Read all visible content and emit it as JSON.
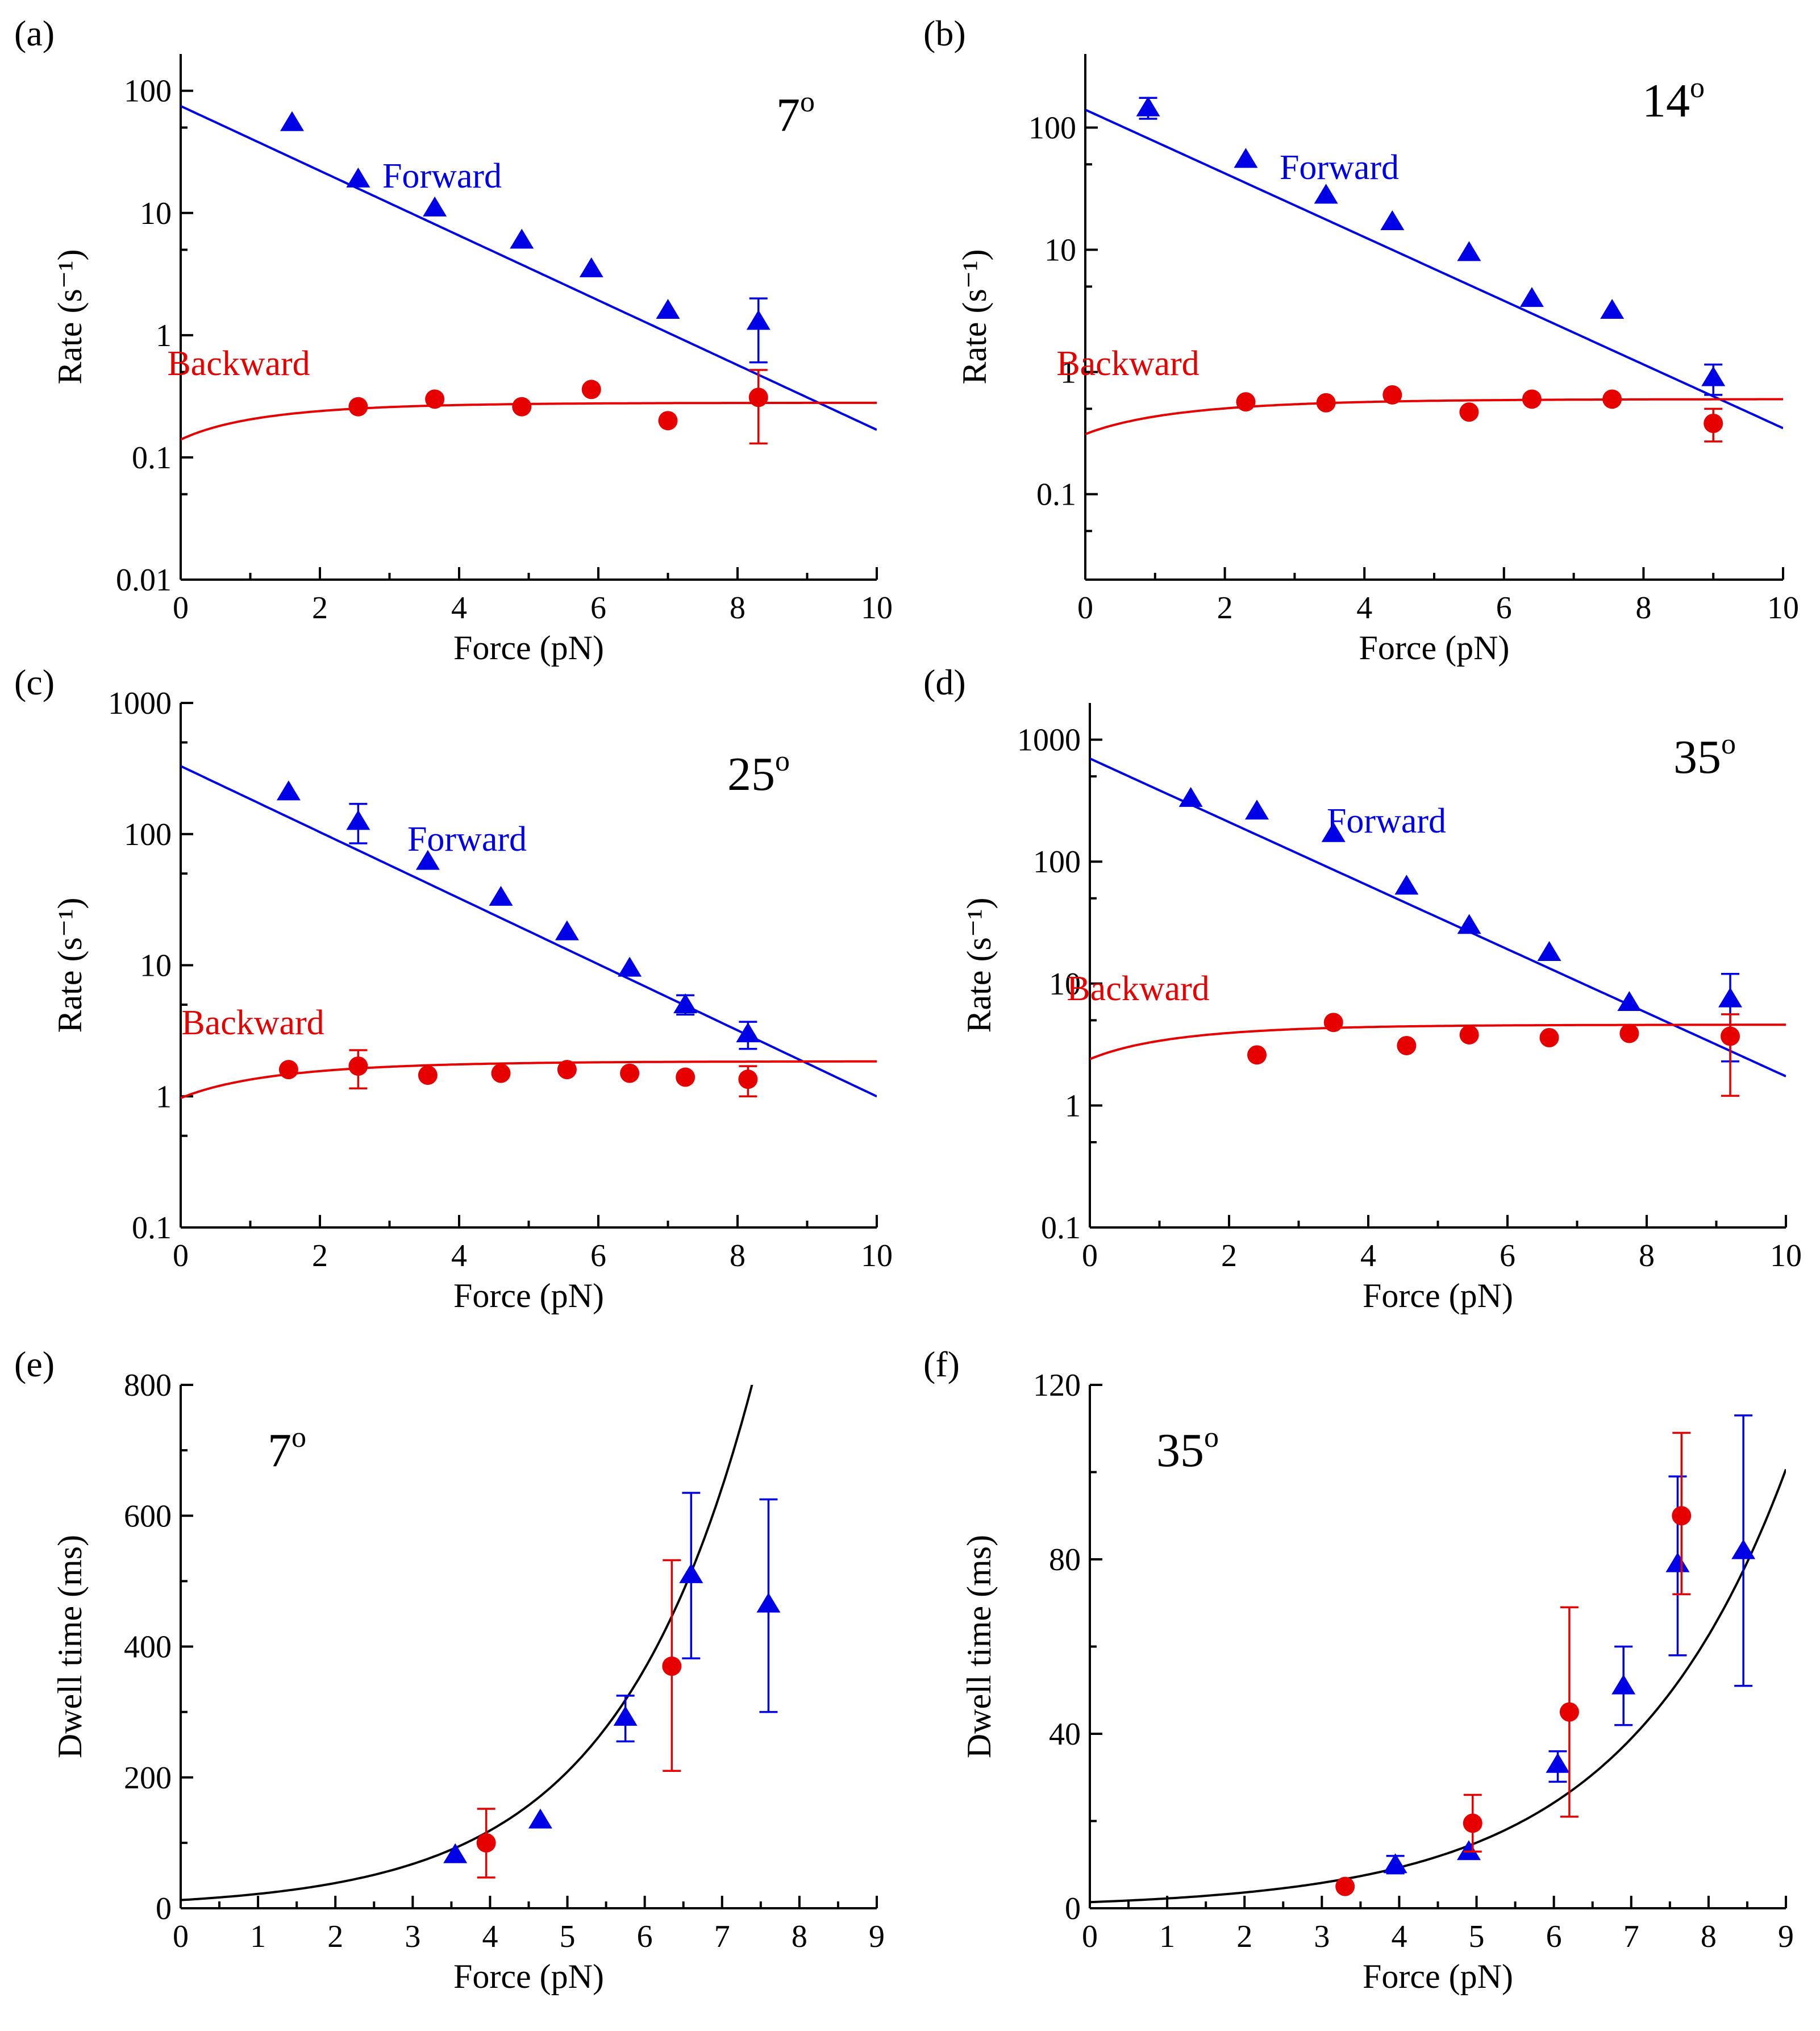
{
  "chart_data": [
    {
      "panel": "(a)",
      "type": "scatter",
      "yscale": "log",
      "angle_label": "7",
      "angle_unit": "o",
      "xlabel": "Force (pN)",
      "ylabel": "Rate (s⁻¹)",
      "xlim": [
        0,
        10
      ],
      "ylim": [
        0.01,
        200
      ],
      "xticks": [
        "0",
        "2",
        "4",
        "6",
        "8",
        "10"
      ],
      "yticks": [
        "0.01",
        "0.1",
        "1",
        "10",
        "100"
      ],
      "series": [
        {
          "name": "Forward",
          "marker": "triangle",
          "color": "#0000e6",
          "x": [
            1.6,
            2.55,
            3.65,
            4.9,
            5.9,
            7.0,
            8.3
          ],
          "y": [
            55,
            19,
            11,
            6,
            3.5,
            1.6,
            1.3
          ],
          "err_lo": [
            null,
            null,
            null,
            null,
            null,
            null,
            0.6
          ],
          "err_hi": [
            null,
            null,
            null,
            null,
            null,
            null,
            2.0
          ],
          "fit": {
            "a": 75,
            "b": 0.61
          }
        },
        {
          "name": "Backward",
          "marker": "circle",
          "color": "#e60000",
          "x": [
            2.55,
            3.65,
            4.9,
            5.9,
            7.0,
            8.3
          ],
          "y": [
            0.26,
            0.3,
            0.26,
            0.36,
            0.2,
            0.31
          ],
          "err_lo": [
            null,
            null,
            null,
            null,
            null,
            0.13
          ],
          "err_hi": [
            null,
            null,
            null,
            null,
            null,
            0.52
          ],
          "fit": {
            "c": 0.28,
            "d": 0.14,
            "k": 0.62
          }
        }
      ]
    },
    {
      "panel": "(b)",
      "type": "scatter",
      "yscale": "log",
      "angle_label": "14",
      "angle_unit": "o",
      "xlabel": "Force (pN)",
      "ylabel": "Rate (s⁻¹)",
      "xlim": [
        0,
        10
      ],
      "ylim": [
        0.02,
        400
      ],
      "xticks": [
        "0",
        "2",
        "4",
        "6",
        "8",
        "10"
      ],
      "yticks": [
        "0.1",
        "1",
        "10",
        "100"
      ],
      "series": [
        {
          "name": "Forward",
          "marker": "triangle",
          "color": "#0000e6",
          "x": [
            0.9,
            2.3,
            3.45,
            4.4,
            5.5,
            6.4,
            7.55,
            9.0
          ],
          "y": [
            145,
            55,
            28,
            17,
            9.5,
            4,
            3.2,
            0.9
          ],
          "err_lo": [
            118,
            null,
            null,
            null,
            null,
            null,
            null,
            0.65
          ],
          "err_hi": [
            175,
            null,
            null,
            null,
            null,
            null,
            null,
            1.15
          ],
          "fit": {
            "a": 140,
            "b": 0.6
          }
        },
        {
          "name": "Backward",
          "marker": "circle",
          "color": "#e60000",
          "x": [
            2.3,
            3.45,
            4.4,
            5.5,
            6.4,
            7.55,
            9.0
          ],
          "y": [
            0.57,
            0.56,
            0.65,
            0.47,
            0.6,
            0.6,
            0.38
          ],
          "err_lo": [
            null,
            null,
            null,
            null,
            null,
            null,
            0.27
          ],
          "err_hi": [
            null,
            null,
            null,
            null,
            null,
            null,
            0.5
          ],
          "fit": {
            "c": 0.6,
            "d": 0.31,
            "k": 0.55
          }
        }
      ]
    },
    {
      "panel": "(c)",
      "type": "scatter",
      "yscale": "log",
      "angle_label": "25",
      "angle_unit": "o",
      "xlabel": "Force (pN)",
      "ylabel": "Rate (s⁻¹)",
      "xlim": [
        0,
        10
      ],
      "ylim": [
        0.1,
        1000
      ],
      "xticks": [
        "0",
        "2",
        "4",
        "6",
        "8",
        "10"
      ],
      "yticks": [
        "0.1",
        "1",
        "10",
        "100",
        "1000"
      ],
      "series": [
        {
          "name": "Forward",
          "marker": "triangle",
          "color": "#0000e6",
          "x": [
            1.55,
            2.55,
            3.55,
            4.6,
            5.55,
            6.45,
            7.25,
            8.15
          ],
          "y": [
            210,
            125,
            62,
            33,
            18,
            9.5,
            5,
            3
          ],
          "err_lo": [
            null,
            85,
            null,
            null,
            null,
            null,
            4.2,
            2.3
          ],
          "err_hi": [
            null,
            170,
            null,
            null,
            null,
            null,
            5.9,
            3.7
          ],
          "fit": {
            "a": 330,
            "b": 0.58
          }
        },
        {
          "name": "Backward",
          "marker": "circle",
          "color": "#e60000",
          "x": [
            1.55,
            2.55,
            3.55,
            4.6,
            5.55,
            6.45,
            7.25,
            8.15
          ],
          "y": [
            1.6,
            1.7,
            1.45,
            1.5,
            1.6,
            1.5,
            1.4,
            1.35
          ],
          "err_lo": [
            null,
            1.15,
            null,
            null,
            null,
            null,
            null,
            1.0
          ],
          "err_hi": [
            null,
            2.25,
            null,
            null,
            null,
            null,
            null,
            1.7
          ],
          "fit": {
            "c": 1.85,
            "d": 0.97,
            "k": 0.55
          }
        }
      ]
    },
    {
      "panel": "(d)",
      "type": "scatter",
      "yscale": "log",
      "angle_label": "35",
      "angle_unit": "o",
      "xlabel": "Force (pN)",
      "ylabel": "Rate (s⁻¹)",
      "xlim": [
        0,
        10
      ],
      "ylim": [
        0.1,
        2000
      ],
      "xticks": [
        "0",
        "2",
        "4",
        "6",
        "8",
        "10"
      ],
      "yticks": [
        "0.1",
        "1",
        "10",
        "100",
        "1000"
      ],
      "series": [
        {
          "name": "Forward",
          "marker": "triangle",
          "color": "#0000e6",
          "x": [
            1.45,
            2.4,
            3.5,
            4.55,
            5.45,
            6.6,
            7.75,
            9.2
          ],
          "y": [
            330,
            260,
            170,
            63,
            30,
            18,
            7,
            7.5
          ],
          "err_lo": [
            null,
            null,
            null,
            null,
            null,
            null,
            null,
            2.3
          ],
          "err_hi": [
            null,
            null,
            null,
            null,
            null,
            null,
            null,
            12
          ],
          "fit": {
            "a": 700,
            "b": 0.6
          }
        },
        {
          "name": "Backward",
          "marker": "circle",
          "color": "#e60000",
          "x": [
            2.4,
            3.5,
            4.55,
            5.45,
            6.6,
            7.75,
            9.2
          ],
          "y": [
            2.6,
            4.8,
            3.1,
            3.8,
            3.6,
            3.9,
            3.7
          ],
          "err_lo": [
            null,
            null,
            null,
            null,
            null,
            null,
            1.2
          ],
          "err_hi": [
            null,
            null,
            null,
            null,
            null,
            null,
            5.6
          ],
          "fit": {
            "c": 4.6,
            "d": 2.4,
            "k": 0.6
          }
        }
      ]
    },
    {
      "panel": "(e)",
      "type": "scatter",
      "yscale": "linear",
      "angle_label": "7",
      "angle_unit": "o",
      "xlabel": "Force (pN)",
      "ylabel": "Dwell time (ms)",
      "xlim": [
        0,
        9
      ],
      "ylim": [
        0,
        800
      ],
      "xticks": [
        "0",
        "1",
        "2",
        "3",
        "4",
        "5",
        "6",
        "7",
        "8",
        "9"
      ],
      "yticks": [
        "0",
        "200",
        "400",
        "600",
        "800"
      ],
      "series": [
        {
          "name": "",
          "marker": "triangle",
          "color": "#0000e6",
          "x": [
            3.55,
            4.65,
            5.75,
            6.6,
            7.6
          ],
          "y": [
            82,
            135,
            292,
            510,
            465
          ],
          "err_lo": [
            null,
            null,
            255,
            382,
            300
          ],
          "err_hi": [
            null,
            null,
            325,
            635,
            625
          ]
        },
        {
          "name": "",
          "marker": "circle",
          "color": "#e60000",
          "x": [
            3.95,
            6.35
          ],
          "y": [
            100,
            370
          ],
          "err_lo": [
            47,
            210
          ],
          "err_hi": [
            152,
            532
          ]
        }
      ],
      "fit_curve": {
        "color": "#000000",
        "a": 12.5,
        "b": 0.563,
        "xmax": 7.4
      }
    },
    {
      "panel": "(f)",
      "type": "scatter",
      "yscale": "linear",
      "angle_label": "35",
      "angle_unit": "o",
      "xlabel": "Force (pN)",
      "ylabel": "Dwell time (ms)",
      "xlim": [
        0,
        9
      ],
      "ylim": [
        0,
        120
      ],
      "xticks": [
        "0",
        "1",
        "2",
        "3",
        "4",
        "5",
        "6",
        "7",
        "8",
        "9"
      ],
      "yticks": [
        "0",
        "40",
        "80",
        "120"
      ],
      "series": [
        {
          "name": "",
          "marker": "triangle",
          "color": "#0000e6",
          "x": [
            3.95,
            4.9,
            6.05,
            6.9,
            7.6,
            8.45
          ],
          "y": [
            10,
            13,
            33,
            51,
            79,
            82
          ],
          "err_lo": [
            8,
            null,
            29,
            42,
            58,
            51
          ],
          "err_hi": [
            12,
            null,
            36,
            60,
            99,
            113
          ]
        },
        {
          "name": "",
          "marker": "circle",
          "color": "#e60000",
          "x": [
            3.3,
            4.95,
            6.2,
            7.65
          ],
          "y": [
            5,
            19.5,
            45,
            90
          ],
          "err_lo": [
            null,
            13,
            21,
            72
          ],
          "err_hi": [
            null,
            26,
            69,
            109
          ]
        }
      ],
      "fit_curve": {
        "color": "#000000",
        "a": 1.4,
        "b": 0.475,
        "xmax": 9
      }
    }
  ]
}
